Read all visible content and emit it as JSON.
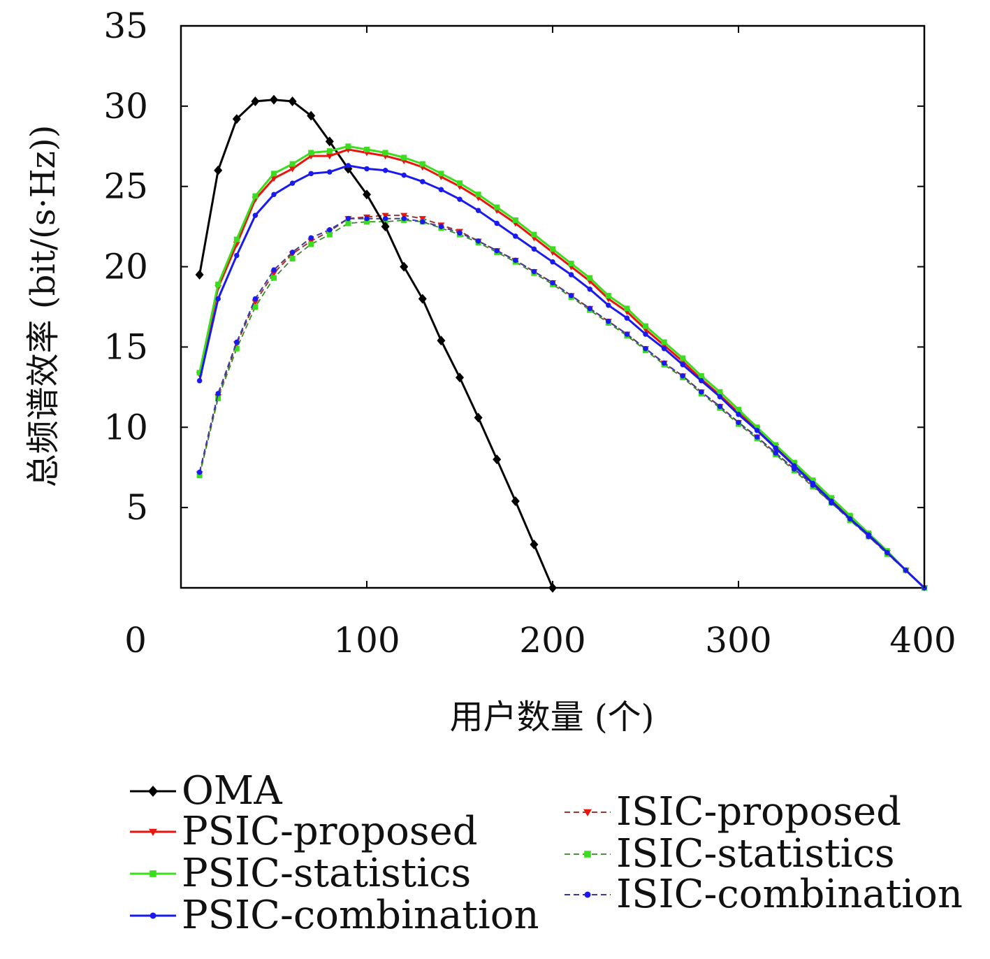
{
  "chart_data": {
    "type": "line",
    "xlabel": "用户数量 (个)",
    "ylabel": "总频谱效率 (bit/(s·Hz))",
    "xlim": [
      0,
      400
    ],
    "ylim": [
      0,
      35
    ],
    "x_ticks": [
      0,
      100,
      200,
      300,
      400
    ],
    "y_ticks": [
      5,
      10,
      15,
      20,
      25,
      30,
      35
    ],
    "grid": false,
    "legend_position": "bottom",
    "series": [
      {
        "name": "OMA",
        "color": "#000000",
        "dashed": false,
        "marker": "diamond",
        "x": [
          10,
          20,
          30,
          40,
          50,
          60,
          70,
          80,
          90,
          100,
          110,
          120,
          130,
          140,
          150,
          160,
          170,
          180,
          190,
          200
        ],
        "y": [
          19.5,
          26.0,
          29.2,
          30.3,
          30.4,
          30.3,
          29.4,
          27.8,
          26.1,
          24.5,
          22.5,
          20.0,
          18.0,
          15.4,
          13.1,
          10.6,
          8.0,
          5.4,
          2.7,
          0.0
        ]
      },
      {
        "name": "PSIC-proposed",
        "color": "#e8160c",
        "dashed": false,
        "marker": "triangle-down",
        "x": [
          10,
          20,
          30,
          40,
          50,
          60,
          70,
          80,
          90,
          100,
          110,
          120,
          130,
          140,
          150,
          160,
          170,
          180,
          190,
          200,
          210,
          220,
          230,
          240,
          250,
          260,
          270,
          280,
          290,
          300,
          310,
          320,
          330,
          340,
          350,
          360,
          370,
          380,
          390,
          400
        ],
        "y": [
          13.3,
          18.7,
          21.4,
          24.2,
          25.5,
          26.1,
          26.9,
          26.9,
          27.3,
          27.1,
          26.9,
          26.6,
          26.2,
          25.6,
          25.0,
          24.3,
          23.5,
          22.7,
          21.8,
          20.9,
          20.0,
          19.1,
          18.0,
          17.2,
          16.1,
          15.1,
          14.1,
          13.0,
          12.0,
          10.9,
          9.9,
          8.8,
          7.7,
          6.6,
          5.5,
          4.4,
          3.3,
          2.2,
          1.1,
          0.0
        ]
      },
      {
        "name": "PSIC-statistics",
        "color": "#3cdc1e",
        "dashed": false,
        "marker": "square",
        "x": [
          10,
          20,
          30,
          40,
          50,
          60,
          70,
          80,
          90,
          100,
          110,
          120,
          130,
          140,
          150,
          160,
          170,
          180,
          190,
          200,
          210,
          220,
          230,
          240,
          250,
          260,
          270,
          280,
          290,
          300,
          310,
          320,
          330,
          340,
          350,
          360,
          370,
          380,
          390,
          400
        ],
        "y": [
          13.4,
          18.9,
          21.7,
          24.4,
          25.8,
          26.4,
          27.1,
          27.2,
          27.5,
          27.3,
          27.1,
          26.8,
          26.4,
          25.8,
          25.2,
          24.5,
          23.7,
          22.9,
          22.0,
          21.1,
          20.2,
          19.3,
          18.2,
          17.4,
          16.3,
          15.3,
          14.3,
          13.2,
          12.2,
          11.1,
          10.0,
          8.9,
          7.8,
          6.7,
          5.6,
          4.5,
          3.4,
          2.3,
          1.1,
          0.0
        ]
      },
      {
        "name": "PSIC-combination",
        "color": "#1a1aee",
        "dashed": false,
        "marker": "dot",
        "x": [
          10,
          20,
          30,
          40,
          50,
          60,
          70,
          80,
          90,
          100,
          110,
          120,
          130,
          140,
          150,
          160,
          170,
          180,
          190,
          200,
          210,
          220,
          230,
          240,
          250,
          260,
          270,
          280,
          290,
          300,
          310,
          320,
          330,
          340,
          350,
          360,
          370,
          380,
          390,
          400
        ],
        "y": [
          12.9,
          18.0,
          20.7,
          23.2,
          24.5,
          25.2,
          25.8,
          25.9,
          26.3,
          26.1,
          26.0,
          25.7,
          25.3,
          24.8,
          24.2,
          23.5,
          22.7,
          21.9,
          21.1,
          20.3,
          19.5,
          18.6,
          17.6,
          16.8,
          15.8,
          14.9,
          13.9,
          12.9,
          11.9,
          10.8,
          9.8,
          8.7,
          7.6,
          6.5,
          5.4,
          4.3,
          3.3,
          2.2,
          1.1,
          0.0
        ]
      },
      {
        "name": "ISIC-proposed",
        "color": "#e8160c",
        "dashed": true,
        "marker": "triangle-down",
        "x": [
          10,
          20,
          30,
          40,
          50,
          60,
          70,
          80,
          90,
          100,
          110,
          120,
          130,
          140,
          150,
          160,
          170,
          180,
          190,
          200,
          210,
          220,
          230,
          240,
          250,
          260,
          270,
          280,
          290,
          300,
          310,
          320,
          330,
          340,
          350,
          360,
          370,
          380,
          390,
          400
        ],
        "y": [
          7.1,
          11.9,
          15.2,
          17.8,
          19.6,
          20.8,
          21.6,
          22.2,
          23.0,
          23.1,
          23.2,
          23.2,
          23.0,
          22.6,
          22.2,
          21.6,
          21.0,
          20.4,
          19.7,
          19.0,
          18.2,
          17.4,
          16.6,
          15.8,
          14.9,
          14.0,
          13.2,
          12.2,
          11.3,
          10.3,
          9.4,
          8.4,
          7.4,
          6.4,
          5.3,
          4.3,
          3.2,
          2.2,
          1.1,
          0.0
        ]
      },
      {
        "name": "ISIC-statistics",
        "color": "#3cdc1e",
        "dashed": true,
        "marker": "square",
        "x": [
          10,
          20,
          30,
          40,
          50,
          60,
          70,
          80,
          90,
          100,
          110,
          120,
          130,
          140,
          150,
          160,
          170,
          180,
          190,
          200,
          210,
          220,
          230,
          240,
          250,
          260,
          270,
          280,
          290,
          300,
          310,
          320,
          330,
          340,
          350,
          360,
          370,
          380,
          390,
          400
        ],
        "y": [
          7.0,
          11.8,
          14.9,
          17.5,
          19.3,
          20.5,
          21.4,
          22.0,
          22.7,
          22.8,
          22.8,
          22.9,
          22.8,
          22.4,
          22.0,
          21.5,
          20.9,
          20.3,
          19.6,
          18.9,
          18.1,
          17.3,
          16.5,
          15.7,
          14.8,
          13.9,
          13.1,
          12.1,
          11.2,
          10.2,
          9.3,
          8.3,
          7.3,
          6.3,
          5.3,
          4.2,
          3.2,
          2.1,
          1.1,
          0.0
        ]
      },
      {
        "name": "ISIC-combination",
        "color": "#1a1aee",
        "dashed": true,
        "marker": "dot",
        "x": [
          10,
          20,
          30,
          40,
          50,
          60,
          70,
          80,
          90,
          100,
          110,
          120,
          130,
          140,
          150,
          160,
          170,
          180,
          190,
          200,
          210,
          220,
          230,
          240,
          250,
          260,
          270,
          280,
          290,
          300,
          310,
          320,
          330,
          340,
          350,
          360,
          370,
          380,
          390,
          400
        ],
        "y": [
          7.2,
          12.1,
          15.3,
          18.0,
          19.8,
          20.9,
          21.8,
          22.3,
          23.0,
          23.0,
          23.0,
          23.0,
          22.8,
          22.5,
          22.1,
          21.6,
          21.0,
          20.4,
          19.7,
          19.0,
          18.2,
          17.4,
          16.6,
          15.8,
          14.9,
          14.0,
          13.2,
          12.2,
          11.3,
          10.3,
          9.4,
          8.4,
          7.4,
          6.4,
          5.3,
          4.3,
          3.2,
          2.2,
          1.1,
          0.0
        ]
      }
    ]
  }
}
